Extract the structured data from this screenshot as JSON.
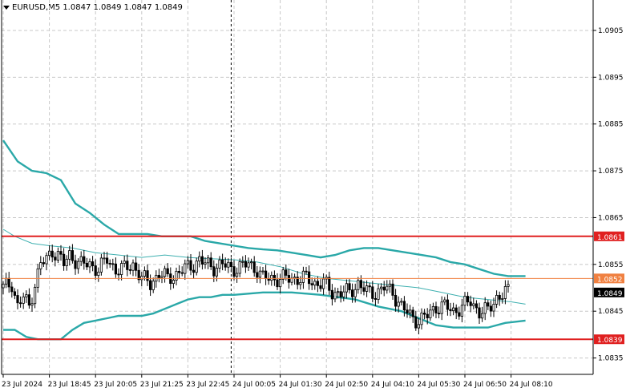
{
  "header": {
    "symbol": "EURUSD,M5",
    "ohlc": "1.0847 1.0849 1.0847 1.0849"
  },
  "colors": {
    "background": "#ffffff",
    "grid": "#c8c8c8",
    "axis": "#000000",
    "candle": "#000000",
    "bollinger": "#2aa8a8",
    "ma": "#3fb0b0",
    "level_red": "#e02020",
    "level_orange": "#f08040",
    "current_price_bg": "#000000"
  },
  "chart_data": {
    "type": "candlestick",
    "title": "",
    "y_axis": {
      "side": "right",
      "ylim": [
        1.08315,
        1.09115
      ],
      "ticks": [
        "1.0905",
        "1.0895",
        "1.0885",
        "1.0875",
        "1.0865",
        "1.0855",
        "1.0845",
        "1.0835"
      ],
      "tick_values": [
        1.0905,
        1.0895,
        1.0885,
        1.0875,
        1.0865,
        1.0855,
        1.0845,
        1.0835
      ]
    },
    "x_axis": {
      "ticks": [
        "23 Jul 2024",
        "23 Jul 18:45",
        "23 Jul 20:05",
        "23 Jul 21:25",
        "23 Jul 22:45",
        "24 Jul 00:05",
        "24 Jul 01:30",
        "24 Jul 02:50",
        "24 Jul 04:10",
        "24 Jul 05:30",
        "24 Jul 06:50",
        "24 Jul 08:10"
      ],
      "bar_index_at_tick": [
        0,
        16,
        32,
        48,
        64,
        80,
        96,
        112,
        128,
        144,
        160,
        176
      ],
      "total_bars": 180
    },
    "grid": true,
    "session_separator_bar": 79,
    "horizontal_levels": [
      {
        "name": "resistance",
        "value": 1.0861,
        "label": "1.0861",
        "color": "#e02020"
      },
      {
        "name": "pivot",
        "value": 1.0852,
        "label": "1.0852",
        "color": "#f08040"
      },
      {
        "name": "support",
        "value": 1.0839,
        "label": "1.0839",
        "color": "#e02020"
      }
    ],
    "current_price": {
      "value": 1.0849,
      "label": "1.0849"
    },
    "series": [
      {
        "kind": "bollinger_upper",
        "points": [
          [
            0,
            1.08815
          ],
          [
            5,
            1.0877
          ],
          [
            10,
            1.0875
          ],
          [
            15,
            1.08745
          ],
          [
            20,
            1.0873
          ],
          [
            25,
            1.0868
          ],
          [
            30,
            1.0866
          ],
          [
            35,
            1.08635
          ],
          [
            40,
            1.08615
          ],
          [
            45,
            1.08615
          ],
          [
            50,
            1.08615
          ],
          [
            55,
            1.0861
          ],
          [
            60,
            1.0861
          ],
          [
            65,
            1.0861
          ],
          [
            70,
            1.086
          ],
          [
            75,
            1.08595
          ],
          [
            80,
            1.0859
          ],
          [
            85,
            1.08585
          ],
          [
            90,
            1.08582
          ],
          [
            95,
            1.0858
          ],
          [
            100,
            1.08575
          ],
          [
            105,
            1.0857
          ],
          [
            110,
            1.08565
          ],
          [
            115,
            1.0857
          ],
          [
            120,
            1.0858
          ],
          [
            125,
            1.08585
          ],
          [
            130,
            1.08585
          ],
          [
            135,
            1.0858
          ],
          [
            140,
            1.08575
          ],
          [
            145,
            1.0857
          ],
          [
            150,
            1.08565
          ],
          [
            155,
            1.08555
          ],
          [
            160,
            1.0855
          ],
          [
            165,
            1.0854
          ],
          [
            170,
            1.0853
          ],
          [
            175,
            1.08525
          ],
          [
            181,
            1.08525
          ]
        ]
      },
      {
        "kind": "bollinger_lower",
        "points": [
          [
            0,
            1.0841
          ],
          [
            4,
            1.0841
          ],
          [
            8,
            1.08395
          ],
          [
            12,
            1.0839
          ],
          [
            16,
            1.0839
          ],
          [
            20,
            1.0839
          ],
          [
            24,
            1.0841
          ],
          [
            28,
            1.08425
          ],
          [
            32,
            1.0843
          ],
          [
            36,
            1.08435
          ],
          [
            40,
            1.0844
          ],
          [
            44,
            1.0844
          ],
          [
            48,
            1.0844
          ],
          [
            52,
            1.08445
          ],
          [
            56,
            1.08455
          ],
          [
            60,
            1.08465
          ],
          [
            64,
            1.08475
          ],
          [
            68,
            1.0848
          ],
          [
            72,
            1.0848
          ],
          [
            76,
            1.08485
          ],
          [
            80,
            1.08485
          ],
          [
            90,
            1.0849
          ],
          [
            100,
            1.0849
          ],
          [
            110,
            1.08485
          ],
          [
            116,
            1.0848
          ],
          [
            122,
            1.08475
          ],
          [
            130,
            1.0846
          ],
          [
            138,
            1.0845
          ],
          [
            144,
            1.08435
          ],
          [
            150,
            1.0842
          ],
          [
            156,
            1.08415
          ],
          [
            162,
            1.08415
          ],
          [
            168,
            1.08415
          ],
          [
            174,
            1.08425
          ],
          [
            181,
            1.0843
          ]
        ]
      },
      {
        "kind": "moving_average",
        "points": [
          [
            0,
            1.08625
          ],
          [
            4,
            1.0861
          ],
          [
            10,
            1.08595
          ],
          [
            16,
            1.0859
          ],
          [
            24,
            1.08585
          ],
          [
            32,
            1.08575
          ],
          [
            40,
            1.0857
          ],
          [
            48,
            1.08565
          ],
          [
            56,
            1.0857
          ],
          [
            64,
            1.08565
          ],
          [
            72,
            1.08562
          ],
          [
            80,
            1.0856
          ],
          [
            88,
            1.08555
          ],
          [
            96,
            1.08545
          ],
          [
            104,
            1.0853
          ],
          [
            112,
            1.0852
          ],
          [
            120,
            1.08515
          ],
          [
            128,
            1.0851
          ],
          [
            136,
            1.08505
          ],
          [
            144,
            1.085
          ],
          [
            152,
            1.0849
          ],
          [
            160,
            1.0848
          ],
          [
            168,
            1.08475
          ],
          [
            176,
            1.0847
          ],
          [
            181,
            1.08465
          ]
        ]
      },
      {
        "kind": "candles",
        "close_path": [
          [
            0,
            1.085
          ],
          [
            3,
            1.0851
          ],
          [
            5,
            1.0846
          ],
          [
            7,
            1.0848
          ],
          [
            9,
            1.0846
          ],
          [
            11,
            1.0851
          ],
          [
            13,
            1.0855
          ],
          [
            15,
            1.0856
          ],
          [
            17,
            1.0858
          ],
          [
            19,
            1.0857
          ],
          [
            21,
            1.0855
          ],
          [
            23,
            1.0857
          ],
          [
            25,
            1.0856
          ],
          [
            27,
            1.0855
          ],
          [
            30,
            1.0855
          ],
          [
            33,
            1.0854
          ],
          [
            36,
            1.0856
          ],
          [
            39,
            1.0854
          ],
          [
            42,
            1.0854
          ],
          [
            45,
            1.0855
          ],
          [
            48,
            1.0852
          ],
          [
            51,
            1.0851
          ],
          [
            54,
            1.0853
          ],
          [
            57,
            1.0852
          ],
          [
            60,
            1.0853
          ],
          [
            63,
            1.0854
          ],
          [
            66,
            1.0855
          ],
          [
            68,
            1.0856
          ],
          [
            70,
            1.0855
          ],
          [
            73,
            1.08545
          ],
          [
            76,
            1.0855
          ],
          [
            79,
            1.0854
          ],
          [
            82,
            1.08545
          ],
          [
            85,
            1.0855
          ],
          [
            88,
            1.0854
          ],
          [
            90,
            1.0852
          ],
          [
            93,
            1.0852
          ],
          [
            96,
            1.0852
          ],
          [
            99,
            1.0852
          ],
          [
            102,
            1.0852
          ],
          [
            105,
            1.0852
          ],
          [
            108,
            1.0851
          ],
          [
            111,
            1.0851
          ],
          [
            114,
            1.0849
          ],
          [
            117,
            1.0849
          ],
          [
            120,
            1.0849
          ],
          [
            123,
            1.0851
          ],
          [
            126,
            1.0849
          ],
          [
            129,
            1.0849
          ],
          [
            132,
            1.085
          ],
          [
            135,
            1.0849
          ],
          [
            138,
            1.0846
          ],
          [
            141,
            1.0844
          ],
          [
            144,
            1.0843
          ],
          [
            147,
            1.0844
          ],
          [
            150,
            1.0846
          ],
          [
            153,
            1.0846
          ],
          [
            156,
            1.0845
          ],
          [
            159,
            1.0846
          ],
          [
            162,
            1.0847
          ],
          [
            165,
            1.0845
          ],
          [
            168,
            1.0845
          ],
          [
            171,
            1.0848
          ],
          [
            174,
            1.0849
          ],
          [
            176,
            1.0849
          ]
        ]
      }
    ]
  }
}
